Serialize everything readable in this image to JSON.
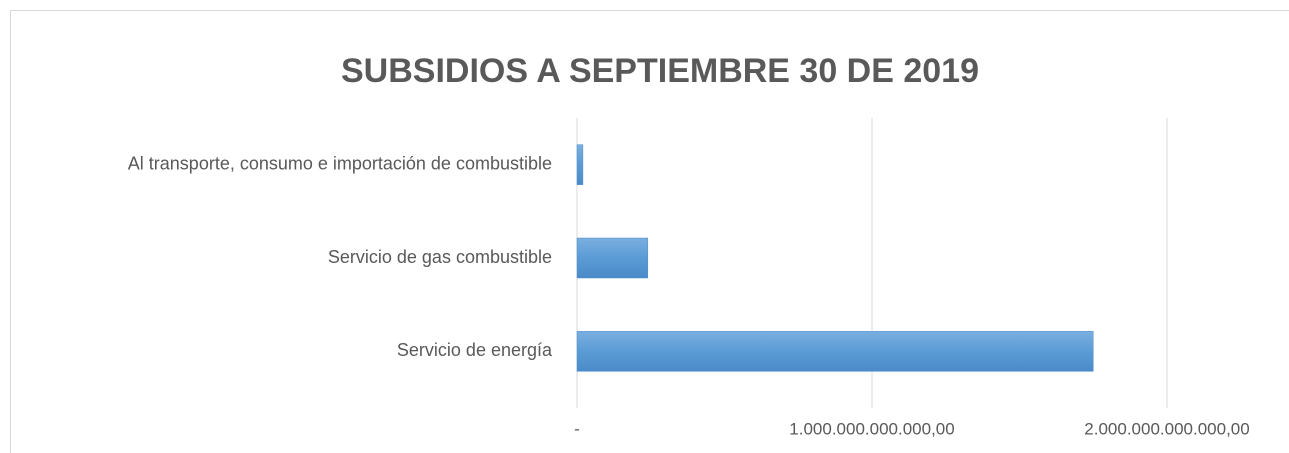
{
  "chart_data": {
    "type": "hbar",
    "title": "SUBSIDIOS A SEPTIEMBRE 30 DE 2019",
    "categories": [
      "Al transporte, consumo e importación de combustible",
      "Servicio de gas combustible",
      "Servicio de energía"
    ],
    "values": [
      20000000000,
      240000000000,
      1750000000000
    ],
    "color": "#5b9bd5",
    "xlim": [
      0,
      2000000000000
    ],
    "xticks": [
      {
        "value": 0,
        "label": "-"
      },
      {
        "value": 1000000000000,
        "label": "1.000.000.000.000,00"
      },
      {
        "value": 2000000000000,
        "label": "2.000.000.000.000,00"
      }
    ],
    "grid": true
  }
}
